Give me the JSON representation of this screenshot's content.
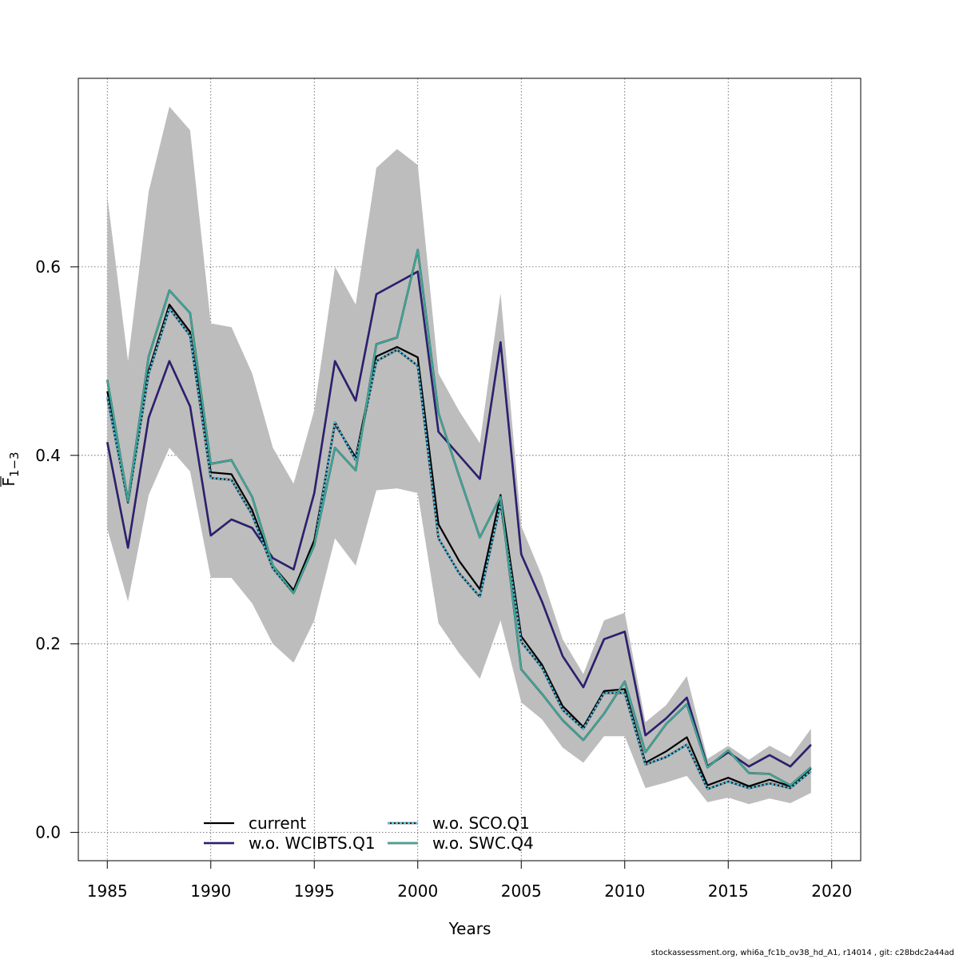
{
  "chart_data": {
    "type": "line",
    "xlabel": "Years",
    "ylabel_main": "F",
    "ylabel_sub": "1−3",
    "xlim": [
      1983.6,
      2021.4
    ],
    "ylim": [
      -0.03,
      0.8
    ],
    "x_ticks": [
      1985,
      1990,
      1995,
      2000,
      2005,
      2010,
      2015,
      2020
    ],
    "y_ticks": [
      0.0,
      0.2,
      0.4,
      0.6
    ],
    "x_tick_labels": [
      "1985",
      "1990",
      "1995",
      "2000",
      "2005",
      "2010",
      "2015",
      "2020"
    ],
    "y_tick_labels": [
      "0.0",
      "0.2",
      "0.4",
      "0.6"
    ],
    "grid": true,
    "legend_position": "bottom-left",
    "x": [
      1985,
      1986,
      1987,
      1988,
      1989,
      1990,
      1991,
      1992,
      1993,
      1994,
      1995,
      1996,
      1997,
      1998,
      1999,
      2000,
      2001,
      2002,
      2003,
      2004,
      2005,
      2006,
      2007,
      2008,
      2009,
      2010,
      2011,
      2012,
      2013,
      2014,
      2015,
      2016,
      2017,
      2018,
      2019
    ],
    "ci_upper": [
      0.675,
      0.5,
      0.68,
      0.77,
      0.745,
      0.54,
      0.536,
      0.487,
      0.408,
      0.37,
      0.448,
      0.6,
      0.56,
      0.705,
      0.725,
      0.708,
      0.487,
      0.447,
      0.413,
      0.572,
      0.325,
      0.272,
      0.205,
      0.168,
      0.225,
      0.233,
      0.117,
      0.135,
      0.166,
      0.078,
      0.092,
      0.077,
      0.092,
      0.08,
      0.11
    ],
    "ci_lower": [
      0.322,
      0.245,
      0.358,
      0.408,
      0.383,
      0.27,
      0.27,
      0.243,
      0.2,
      0.18,
      0.225,
      0.312,
      0.283,
      0.363,
      0.365,
      0.36,
      0.222,
      0.19,
      0.163,
      0.225,
      0.138,
      0.12,
      0.09,
      0.074,
      0.102,
      0.102,
      0.047,
      0.053,
      0.06,
      0.032,
      0.037,
      0.03,
      0.036,
      0.031,
      0.042
    ],
    "series": [
      {
        "name": "current",
        "color": "#000000",
        "dash": "solid",
        "halo": false,
        "values": [
          0.468,
          0.352,
          0.49,
          0.56,
          0.531,
          0.382,
          0.38,
          0.342,
          0.283,
          0.257,
          0.31,
          0.433,
          0.398,
          0.505,
          0.515,
          0.504,
          0.327,
          0.288,
          0.258,
          0.358,
          0.208,
          0.178,
          0.134,
          0.112,
          0.15,
          0.152,
          0.074,
          0.086,
          0.101,
          0.05,
          0.058,
          0.049,
          0.056,
          0.049,
          0.068
        ]
      },
      {
        "name": "w.o. WCIBTS.Q1",
        "color": "#2d1e7a",
        "dash": "solid",
        "halo": true,
        "values": [
          0.414,
          0.302,
          0.44,
          0.5,
          0.452,
          0.315,
          0.332,
          0.323,
          0.291,
          0.279,
          0.36,
          0.5,
          0.458,
          0.571,
          0.583,
          0.595,
          0.425,
          0.4,
          0.375,
          0.52,
          0.295,
          0.245,
          0.187,
          0.154,
          0.205,
          0.213,
          0.103,
          0.121,
          0.143,
          0.07,
          0.085,
          0.07,
          0.082,
          0.07,
          0.093
        ]
      },
      {
        "name": "w.o. SCO.Q1",
        "color": "#4dc2e8",
        "dash": "dotted",
        "halo": true,
        "values": [
          0.462,
          0.35,
          0.487,
          0.556,
          0.527,
          0.376,
          0.374,
          0.337,
          0.28,
          0.254,
          0.305,
          0.435,
          0.395,
          0.5,
          0.512,
          0.495,
          0.312,
          0.275,
          0.25,
          0.349,
          0.202,
          0.175,
          0.13,
          0.11,
          0.148,
          0.148,
          0.072,
          0.08,
          0.093,
          0.046,
          0.054,
          0.047,
          0.052,
          0.047,
          0.065
        ]
      },
      {
        "name": "w.o. SWC.Q4",
        "color": "#3da898",
        "dash": "solid",
        "halo": true,
        "values": [
          0.48,
          0.352,
          0.505,
          0.575,
          0.551,
          0.391,
          0.395,
          0.356,
          0.283,
          0.254,
          0.305,
          0.408,
          0.384,
          0.518,
          0.525,
          0.618,
          0.445,
          0.378,
          0.313,
          0.356,
          0.173,
          0.147,
          0.119,
          0.098,
          0.126,
          0.16,
          0.085,
          0.115,
          0.136,
          0.069,
          0.087,
          0.063,
          0.062,
          0.05,
          0.069
        ]
      }
    ]
  },
  "footer": "stockassessment.org, whi6a_fc1b_ov38_hd_A1, r14014 , git: c28bdc2a44ad"
}
